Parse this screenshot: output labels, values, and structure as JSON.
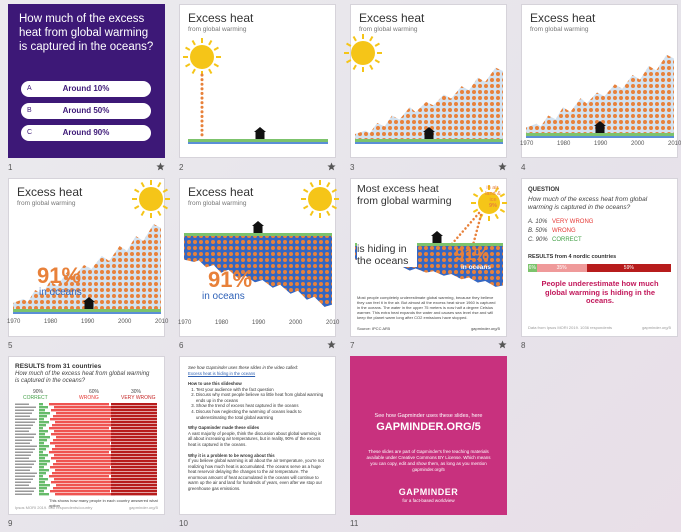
{
  "slides": [
    {
      "number": "1",
      "question": "How much of the excess heat from global warming is captured in the oceans?",
      "options": [
        {
          "letter": "A",
          "text": "Around 10%"
        },
        {
          "letter": "B",
          "text": "Around 50%"
        },
        {
          "letter": "C",
          "text": "Around 90%"
        }
      ]
    },
    {
      "number": "2",
      "title": "Excess heat",
      "subtitle": "from global warming"
    },
    {
      "number": "3",
      "title": "Excess heat",
      "subtitle": "from global warming"
    },
    {
      "number": "4",
      "title": "Excess heat",
      "subtitle": "from global warming",
      "years": [
        "1970",
        "1980",
        "1990",
        "2000",
        "2010"
      ]
    },
    {
      "number": "5",
      "title": "Excess heat",
      "subtitle": "from global warming",
      "big": "91%",
      "big_caption": "in oceans",
      "years": [
        "1970",
        "1980",
        "1990",
        "2000",
        "2010"
      ]
    },
    {
      "number": "6",
      "title": "Excess heat",
      "subtitle": "from global warming",
      "big": "91%",
      "big_caption": "in oceans",
      "years": [
        "1970",
        "1980",
        "1990",
        "2000",
        "2010"
      ]
    },
    {
      "number": "7",
      "title": "Most excess heat from global warming",
      "title2": "is hiding in the oceans",
      "side_label": "in air, land & ice",
      "side_value": "9%",
      "big": "91%",
      "big_caption": "in oceans",
      "body": "Most people completely underestimate global warming, because they believe they can feel it in the air. But almost all the excess heat since 1960 is captured in the oceans. The water in the upper 75 meters is now half a degree Celsius warmer. This extra heat expands the water and causes sea level rise and will keep the planet warm long after CO2 emissions have stopped.",
      "source": "Source: IPCC AR5",
      "credit": "gapminder.org/5"
    },
    {
      "number": "8",
      "heading": "QUESTION",
      "question": "How much of the excess heat from global warming is captured in the oceans?",
      "answers": [
        {
          "text": "A. 10%",
          "verdict": "VERY WRONG"
        },
        {
          "text": "B. 50%",
          "verdict": "WRONG"
        },
        {
          "text": "C. 90%",
          "verdict": "CORRECT"
        }
      ],
      "results": "RESULTS from 4 nordic countries",
      "values": [
        6,
        35,
        59
      ],
      "value_labels": [
        "6%",
        "35%",
        "59%"
      ],
      "conclusion": "People underestimate how much global warming is hiding in the oceans.",
      "source": "Data from Ipsos MORI 2019. 1036 respondents",
      "credit": "gapminder.org/5"
    },
    {
      "number": "9",
      "results": "RESULTS from 31 countries",
      "question": "How much of the excess heat from global warming is captured in the oceans?",
      "columns": [
        {
          "pct": "90%",
          "label": "CORRECT"
        },
        {
          "pct": "60%",
          "label": "WRONG"
        },
        {
          "pct": "30%",
          "label": "VERY WRONG"
        }
      ],
      "footer": "This shows how many people in each country answered what option",
      "source": "Ipsos MORI 2019. 500 respondents/country",
      "credit": "gapminder.org/5"
    },
    {
      "number": "10",
      "intro": "See how Gapminder uses these slides in the video called:",
      "link": "Excess heat is hiding in the oceans",
      "how_title": "How to use this slideshow",
      "steps": [
        "Test your audience with the fact question",
        "Discuss why most people believe so little heat from global warming ends up in the oceans",
        "Show the trend of excess heat captured in the oceans",
        "Discuss how neglecting the warming of oceans leads to underestimating the total global warming"
      ],
      "why_title": "Why Gapminder made these slides",
      "why_text": "A vast majority of people, think the discussion about global warming is all about increasing air temperatures, but in reality, 90% of the excess heat is captured in the oceans.",
      "problem_title": "Why it is a problem to be wrong about this",
      "problem_text": "If you believe global warming is all about the air temperature, you're not realizing how much heat is accumulated. The oceans serve as a huge heat reservoir delaying the changes to the air temperature. The enormous amount of heat accumulated in the oceans will continue to warm up the air and land for hundreds of years, even after we stop our greenhouse gas emissions."
    },
    {
      "number": "11",
      "intro": "See how Gapminder uses these slides, here",
      "url": "GAPMINDER.ORG/5",
      "text": "These slides are part of Gapminder's free teaching materials available under Creative Commons BY License. Which means you can copy, edit and show them, as long as you mention gapminder.org/5",
      "brand": "GAPMINDER",
      "tagline": "for a fact-based worldview"
    }
  ]
}
